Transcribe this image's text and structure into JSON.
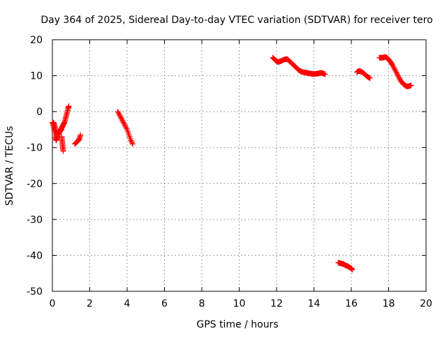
{
  "chart_data": {
    "type": "scatter",
    "title": "Day 364 of 2025, Sidereal Day-to-day VTEC variation (SDTVAR) for receiver tero",
    "xlabel": "GPS time / hours",
    "ylabel": "SDTVAR / TECUs",
    "xlim": [
      0,
      20
    ],
    "ylim": [
      -50,
      20
    ],
    "xticks": [
      0,
      2,
      4,
      6,
      8,
      10,
      12,
      14,
      16,
      18,
      20
    ],
    "yticks": [
      -50,
      -40,
      -30,
      -20,
      -10,
      0,
      10,
      20
    ],
    "grid": true,
    "marker": "+",
    "series": [
      {
        "name": "SDTVAR",
        "color": "#ff0000",
        "segments": [
          [
            [
              0.0,
              -3.0
            ],
            [
              0.05,
              -4.0
            ],
            [
              0.1,
              -5.5
            ],
            [
              0.15,
              -7.0
            ],
            [
              0.2,
              -8.0
            ],
            [
              0.25,
              -7.5
            ],
            [
              0.3,
              -6.5
            ],
            [
              0.35,
              -6.0
            ],
            [
              0.4,
              -5.5
            ],
            [
              0.45,
              -5.0
            ],
            [
              0.5,
              -4.5
            ],
            [
              0.55,
              -4.0
            ],
            [
              0.6,
              -3.5
            ],
            [
              0.65,
              -3.0
            ],
            [
              0.7,
              -2.0
            ],
            [
              0.75,
              -1.0
            ],
            [
              0.8,
              0.0
            ],
            [
              0.85,
              1.0
            ],
            [
              0.88,
              1.5
            ]
          ],
          [
            [
              0.05,
              -3.0
            ],
            [
              0.1,
              -3.5
            ],
            [
              0.15,
              -4.5
            ],
            [
              0.2,
              -5.5
            ],
            [
              0.25,
              -6.0
            ],
            [
              0.3,
              -6.0
            ],
            [
              0.35,
              -5.8
            ],
            [
              0.4,
              -5.5
            ],
            [
              0.45,
              -5.2
            ],
            [
              0.5,
              -5.0
            ]
          ],
          [
            [
              0.5,
              -7.0
            ],
            [
              0.52,
              -8.0
            ],
            [
              0.54,
              -9.0
            ],
            [
              0.56,
              -10.0
            ],
            [
              0.58,
              -11.0
            ]
          ],
          [
            [
              1.2,
              -9.0
            ],
            [
              1.3,
              -8.5
            ],
            [
              1.4,
              -8.0
            ],
            [
              1.45,
              -7.5
            ],
            [
              1.5,
              -6.5
            ]
          ],
          [
            [
              3.5,
              0.0
            ],
            [
              3.6,
              -1.0
            ],
            [
              3.7,
              -2.0
            ],
            [
              3.8,
              -3.0
            ],
            [
              3.9,
              -4.0
            ],
            [
              4.0,
              -5.0
            ],
            [
              4.1,
              -6.5
            ],
            [
              4.2,
              -8.0
            ],
            [
              4.3,
              -9.0
            ]
          ],
          [
            [
              11.8,
              15.0
            ],
            [
              11.9,
              14.5
            ],
            [
              12.0,
              14.0
            ],
            [
              12.1,
              13.8
            ],
            [
              12.2,
              14.0
            ],
            [
              12.3,
              14.2
            ],
            [
              12.4,
              14.5
            ],
            [
              12.5,
              14.6
            ],
            [
              12.6,
              14.5
            ],
            [
              12.7,
              14.0
            ],
            [
              12.8,
              13.5
            ],
            [
              12.9,
              13.0
            ],
            [
              13.0,
              12.5
            ],
            [
              13.1,
              12.0
            ],
            [
              13.2,
              11.5
            ],
            [
              13.3,
              11.2
            ],
            [
              13.4,
              11.0
            ],
            [
              13.5,
              10.9
            ],
            [
              13.6,
              10.8
            ],
            [
              13.7,
              10.7
            ],
            [
              13.8,
              10.6
            ],
            [
              13.9,
              10.5
            ],
            [
              14.0,
              10.5
            ],
            [
              14.1,
              10.5
            ],
            [
              14.2,
              10.6
            ],
            [
              14.3,
              10.7
            ],
            [
              14.4,
              10.8
            ],
            [
              14.5,
              10.6
            ],
            [
              14.6,
              10.4
            ]
          ],
          [
            [
              15.3,
              -42.0
            ],
            [
              15.4,
              -42.2
            ],
            [
              15.5,
              -42.3
            ],
            [
              15.6,
              -42.5
            ],
            [
              15.7,
              -42.8
            ],
            [
              15.8,
              -43.0
            ],
            [
              15.9,
              -43.3
            ],
            [
              16.0,
              -43.6
            ],
            [
              16.05,
              -44.0
            ]
          ],
          [
            [
              16.3,
              11.0
            ],
            [
              16.4,
              11.3
            ],
            [
              16.5,
              11.2
            ],
            [
              16.6,
              10.9
            ],
            [
              16.7,
              10.5
            ],
            [
              16.8,
              10.0
            ],
            [
              16.9,
              9.6
            ],
            [
              17.0,
              9.3
            ]
          ],
          [
            [
              17.5,
              15.0
            ],
            [
              17.6,
              15.0
            ],
            [
              17.7,
              15.0
            ],
            [
              17.8,
              15.2
            ],
            [
              17.9,
              15.0
            ],
            [
              18.0,
              14.5
            ],
            [
              18.1,
              13.8
            ],
            [
              18.2,
              13.0
            ],
            [
              18.3,
              12.0
            ],
            [
              18.4,
              11.0
            ],
            [
              18.5,
              10.0
            ],
            [
              18.6,
              9.0
            ],
            [
              18.7,
              8.2
            ],
            [
              18.8,
              7.6
            ],
            [
              18.9,
              7.2
            ],
            [
              19.0,
              7.0
            ],
            [
              19.1,
              7.1
            ],
            [
              19.2,
              7.3
            ]
          ]
        ]
      }
    ]
  }
}
